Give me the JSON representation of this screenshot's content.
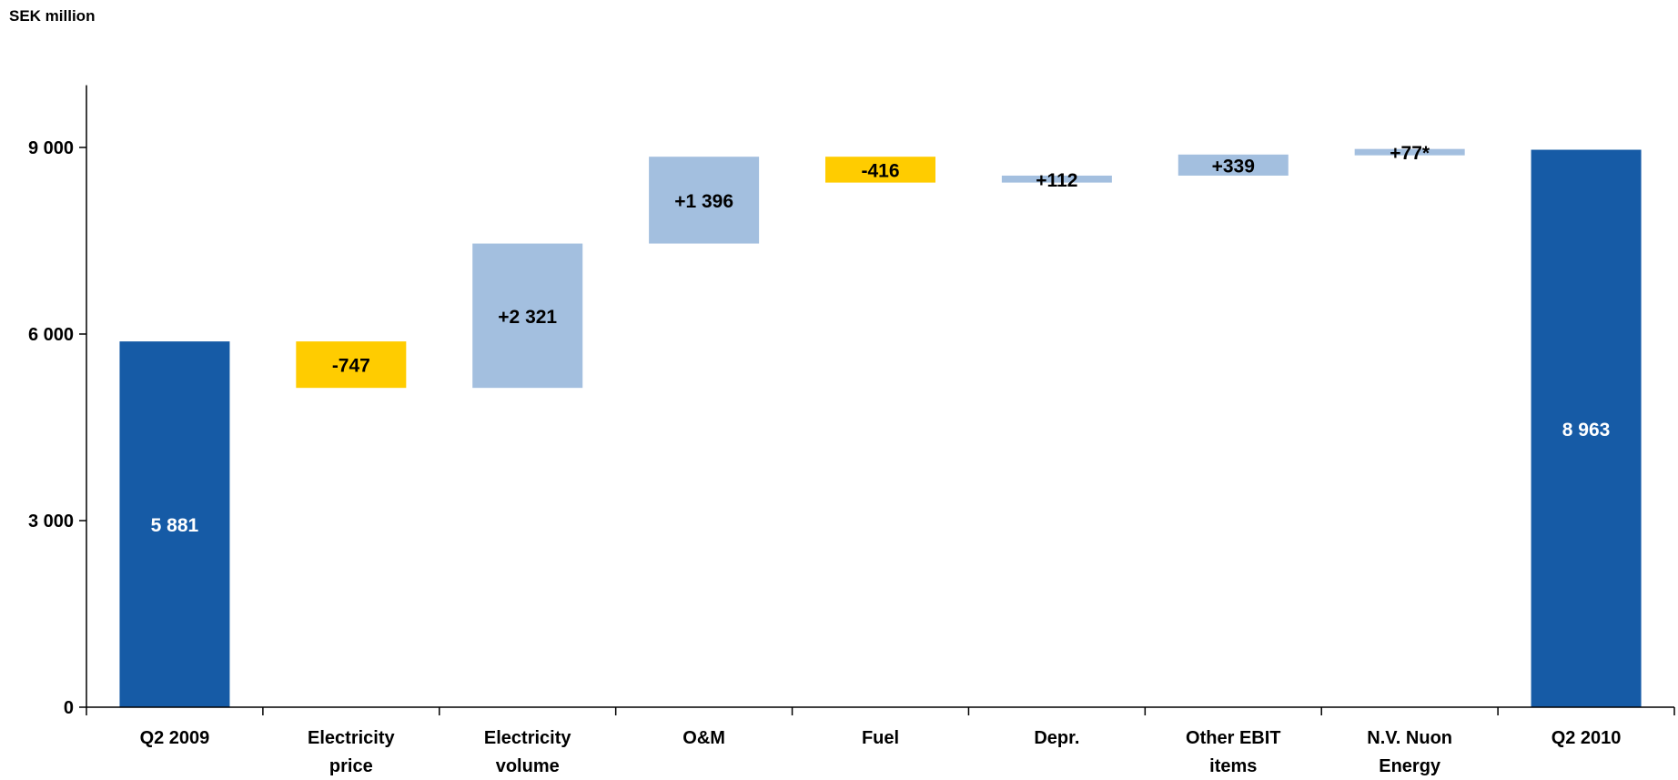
{
  "unit_label": "SEK million",
  "colors": {
    "total": "#165BA6",
    "increase": "#A3BFDF",
    "decrease": "#FFCC00",
    "axis": "#000000"
  },
  "chart_data": {
    "type": "bar",
    "subtype": "waterfall",
    "title": "",
    "ylabel": "SEK million",
    "xlabel": "",
    "ylim": [
      0,
      10000
    ],
    "yticks": [
      0,
      3000,
      6000,
      9000
    ],
    "ytick_labels": [
      "0",
      "3 000",
      "6 000",
      "9 000"
    ],
    "grid": false,
    "categories": [
      {
        "lines": [
          "Q2 2009"
        ]
      },
      {
        "lines": [
          "Electricity",
          "price"
        ]
      },
      {
        "lines": [
          "Electricity",
          "volume"
        ]
      },
      {
        "lines": [
          "O&M"
        ]
      },
      {
        "lines": [
          "Fuel"
        ]
      },
      {
        "lines": [
          "Depr."
        ]
      },
      {
        "lines": [
          "Other EBIT",
          "items"
        ]
      },
      {
        "lines": [
          "N.V. Nuon",
          "Energy"
        ]
      },
      {
        "lines": [
          "Q2 2010"
        ]
      }
    ],
    "steps": [
      {
        "kind": "total",
        "value": 5881,
        "label": "5 881"
      },
      {
        "kind": "delta",
        "value": -747,
        "label": "-747"
      },
      {
        "kind": "delta",
        "value": 2321,
        "label": "+2 321"
      },
      {
        "kind": "delta",
        "value": 1396,
        "label": "+1 396"
      },
      {
        "kind": "delta",
        "value": -416,
        "label": "-416"
      },
      {
        "kind": "delta",
        "value": 112,
        "label": "+112"
      },
      {
        "kind": "delta",
        "value": 339,
        "label": "+339"
      },
      {
        "kind": "delta",
        "value": 77,
        "label": "+77*"
      },
      {
        "kind": "total",
        "value": 8963,
        "label": "8 963"
      }
    ]
  }
}
